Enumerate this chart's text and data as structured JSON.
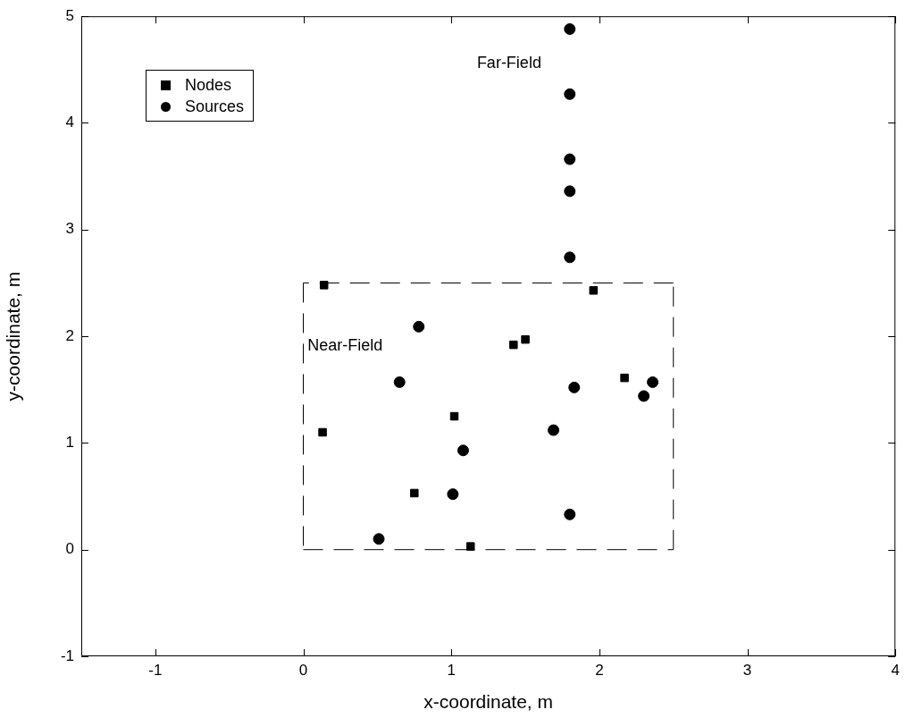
{
  "chart_data": {
    "type": "scatter",
    "xlabel": "x-coordinate, m",
    "ylabel": "y-coordinate, m",
    "xlim": [
      -1.5,
      4
    ],
    "ylim": [
      -1,
      5
    ],
    "xticks": [
      -1,
      0,
      1,
      2,
      3,
      4
    ],
    "yticks": [
      -1,
      0,
      1,
      2,
      3,
      4,
      5
    ],
    "grid": false,
    "legend": "top left",
    "annotations": [
      "Far-Field",
      "Near-Field"
    ],
    "series": [
      {
        "name": "Nodes",
        "color": "#000000",
        "marker": "square",
        "x": [
          0.14,
          0.13,
          1.02,
          1.42,
          1.5,
          1.96,
          2.17,
          0.75,
          1.13
        ],
        "values": [
          2.48,
          1.1,
          1.25,
          1.92,
          1.97,
          2.43,
          1.61,
          0.53,
          0.03
        ]
      },
      {
        "name": "Sources",
        "color": "#000000",
        "marker": "circle",
        "x": [
          1.8,
          1.8,
          1.8,
          1.8,
          1.8,
          0.78,
          0.65,
          1.83,
          2.36,
          2.3,
          1.69,
          1.08,
          1.01,
          1.8,
          0.51
        ],
        "values": [
          4.88,
          4.27,
          3.66,
          3.36,
          2.74,
          2.09,
          1.57,
          1.52,
          1.57,
          1.44,
          1.12,
          0.93,
          0.52,
          0.33,
          0.1
        ]
      },
      {
        "type": "line",
        "color": "#000000",
        "line_style": "dashed",
        "marker": "none",
        "x": [
          0,
          2.5
        ],
        "values": [
          0,
          0
        ]
      },
      {
        "type": "line",
        "color": "#000000",
        "line_style": "dashed",
        "marker": "none",
        "x": [
          2.5,
          2.5
        ],
        "values": [
          0,
          2.5
        ]
      },
      {
        "type": "line",
        "color": "#000000",
        "line_style": "dashed",
        "marker": "none",
        "x": [
          2.5,
          0
        ],
        "values": [
          2.5,
          2.5
        ]
      },
      {
        "type": "line",
        "color": "#000000",
        "line_style": "dashed",
        "marker": "none",
        "x": [
          0,
          0
        ],
        "values": [
          2.5,
          0
        ]
      }
    ]
  }
}
